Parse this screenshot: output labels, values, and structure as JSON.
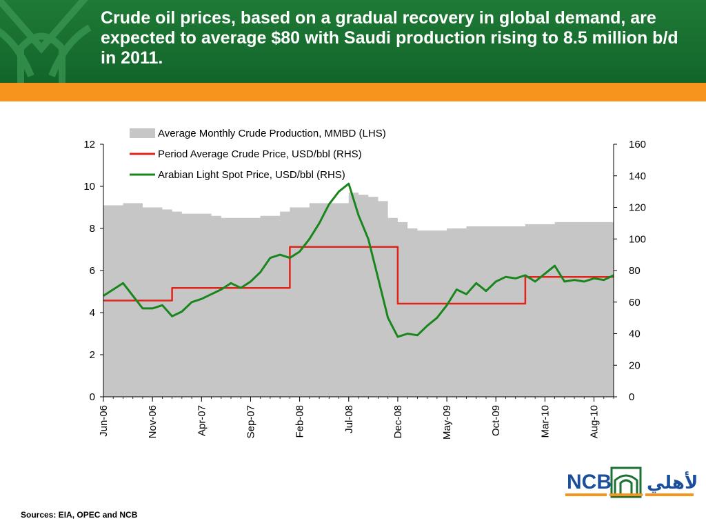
{
  "header": {
    "title": "Crude oil prices, based on a gradual recovery in global demand, are expected to average $80 with Saudi production rising to 8.5 million b/d in 2011."
  },
  "colors": {
    "header_green": "#1a7232",
    "orange": "#f7941d",
    "production_gray": "#c6c6c6",
    "period_avg_red": "#e2231a",
    "spot_green": "#18861c",
    "logo_blue": "#1b4f9c"
  },
  "footer": {
    "sources": "Sources: EIA, OPEC and NCB"
  },
  "logo": {
    "text": "NCB",
    "arabic_text": "الأهلي"
  },
  "chart_data": {
    "type": "area+line",
    "title": "",
    "legend_position": "top-center",
    "grid": false,
    "x_tick_labels": [
      "Jun-06",
      "Nov-06",
      "Apr-07",
      "Sep-07",
      "Feb-08",
      "Jul-08",
      "Dec-08",
      "May-09",
      "Oct-09",
      "Mar-10",
      "Aug-10"
    ],
    "x_range": [
      "2006-06",
      "2010-10"
    ],
    "y_left": {
      "label": "",
      "ticks": [
        0,
        2,
        4,
        6,
        8,
        10,
        12
      ],
      "range": [
        0,
        12
      ]
    },
    "y_right": {
      "label": "",
      "ticks": [
        0,
        20,
        40,
        60,
        80,
        100,
        120,
        140,
        160
      ],
      "range": [
        0,
        160
      ]
    },
    "series": [
      {
        "name": "Average Monthly Crude Production, MMBD (LHS)",
        "kind": "area",
        "axis": "left",
        "points": [
          [
            "2006-06",
            9.1
          ],
          [
            "2006-07",
            9.1
          ],
          [
            "2006-08",
            9.2
          ],
          [
            "2006-09",
            9.2
          ],
          [
            "2006-10",
            9.0
          ],
          [
            "2006-11",
            9.0
          ],
          [
            "2006-12",
            8.9
          ],
          [
            "2007-01",
            8.8
          ],
          [
            "2007-02",
            8.7
          ],
          [
            "2007-03",
            8.7
          ],
          [
            "2007-04",
            8.7
          ],
          [
            "2007-05",
            8.6
          ],
          [
            "2007-06",
            8.5
          ],
          [
            "2007-07",
            8.5
          ],
          [
            "2007-08",
            8.5
          ],
          [
            "2007-09",
            8.5
          ],
          [
            "2007-10",
            8.6
          ],
          [
            "2007-11",
            8.6
          ],
          [
            "2007-12",
            8.8
          ],
          [
            "2008-01",
            9.0
          ],
          [
            "2008-02",
            9.0
          ],
          [
            "2008-03",
            9.2
          ],
          [
            "2008-04",
            9.2
          ],
          [
            "2008-05",
            9.2
          ],
          [
            "2008-06",
            9.2
          ],
          [
            "2008-07",
            9.7
          ],
          [
            "2008-08",
            9.6
          ],
          [
            "2008-09",
            9.5
          ],
          [
            "2008-10",
            9.3
          ],
          [
            "2008-11",
            8.5
          ],
          [
            "2008-12",
            8.3
          ],
          [
            "2009-01",
            8.0
          ],
          [
            "2009-02",
            7.9
          ],
          [
            "2009-03",
            7.9
          ],
          [
            "2009-04",
            7.9
          ],
          [
            "2009-05",
            8.0
          ],
          [
            "2009-06",
            8.0
          ],
          [
            "2009-07",
            8.1
          ],
          [
            "2009-08",
            8.1
          ],
          [
            "2009-09",
            8.1
          ],
          [
            "2009-10",
            8.1
          ],
          [
            "2009-11",
            8.1
          ],
          [
            "2009-12",
            8.1
          ],
          [
            "2010-01",
            8.2
          ],
          [
            "2010-02",
            8.2
          ],
          [
            "2010-03",
            8.2
          ],
          [
            "2010-04",
            8.3
          ],
          [
            "2010-05",
            8.3
          ],
          [
            "2010-06",
            8.3
          ],
          [
            "2010-07",
            8.3
          ],
          [
            "2010-08",
            8.3
          ],
          [
            "2010-09",
            8.3
          ],
          [
            "2010-10",
            8.3
          ]
        ]
      },
      {
        "name": "Period Average Crude Price, USD/bbl (RHS)",
        "kind": "step",
        "axis": "right",
        "points": [
          [
            "2006-06",
            61
          ],
          [
            "2007-01",
            61
          ],
          [
            "2007-01",
            69
          ],
          [
            "2008-01",
            69
          ],
          [
            "2008-01",
            95
          ],
          [
            "2008-12",
            95
          ],
          [
            "2008-12",
            59
          ],
          [
            "2010-01",
            59
          ],
          [
            "2010-01",
            76
          ],
          [
            "2010-10",
            76
          ]
        ]
      },
      {
        "name": "Arabian Light Spot Price, USD/bbl (RHS)",
        "kind": "line",
        "axis": "right",
        "points": [
          [
            "2006-06",
            64
          ],
          [
            "2006-07",
            68
          ],
          [
            "2006-08",
            72
          ],
          [
            "2006-09",
            64
          ],
          [
            "2006-10",
            56
          ],
          [
            "2006-11",
            56
          ],
          [
            "2006-12",
            58
          ],
          [
            "2007-01",
            51
          ],
          [
            "2007-02",
            54
          ],
          [
            "2007-03",
            60
          ],
          [
            "2007-04",
            62
          ],
          [
            "2007-05",
            65
          ],
          [
            "2007-06",
            68
          ],
          [
            "2007-07",
            72
          ],
          [
            "2007-08",
            69
          ],
          [
            "2007-09",
            73
          ],
          [
            "2007-10",
            79
          ],
          [
            "2007-11",
            88
          ],
          [
            "2007-12",
            90
          ],
          [
            "2008-01",
            88
          ],
          [
            "2008-02",
            92
          ],
          [
            "2008-03",
            100
          ],
          [
            "2008-04",
            110
          ],
          [
            "2008-05",
            122
          ],
          [
            "2008-06",
            130
          ],
          [
            "2008-07",
            135
          ],
          [
            "2008-08",
            115
          ],
          [
            "2008-09",
            100
          ],
          [
            "2008-10",
            75
          ],
          [
            "2008-11",
            50
          ],
          [
            "2008-12",
            38
          ],
          [
            "2009-01",
            40
          ],
          [
            "2009-02",
            39
          ],
          [
            "2009-03",
            45
          ],
          [
            "2009-04",
            50
          ],
          [
            "2009-05",
            58
          ],
          [
            "2009-06",
            68
          ],
          [
            "2009-07",
            65
          ],
          [
            "2009-08",
            72
          ],
          [
            "2009-09",
            67
          ],
          [
            "2009-10",
            73
          ],
          [
            "2009-11",
            76
          ],
          [
            "2009-12",
            75
          ],
          [
            "2010-01",
            77
          ],
          [
            "2010-02",
            73
          ],
          [
            "2010-03",
            78
          ],
          [
            "2010-04",
            83
          ],
          [
            "2010-05",
            73
          ],
          [
            "2010-06",
            74
          ],
          [
            "2010-07",
            73
          ],
          [
            "2010-08",
            75
          ],
          [
            "2010-09",
            74
          ],
          [
            "2010-10",
            77
          ]
        ]
      }
    ]
  }
}
